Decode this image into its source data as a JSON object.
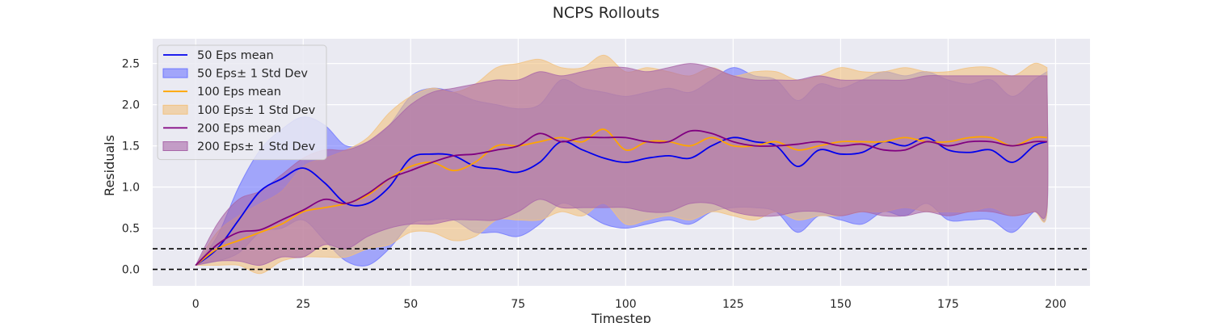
{
  "chart_data": {
    "type": "line",
    "title": "NCPS Rollouts",
    "xlabel": "Timestep",
    "ylabel": "Residuals",
    "xlim": [
      -10,
      208
    ],
    "ylim": [
      -0.2,
      2.8
    ],
    "xticks": [
      0,
      25,
      50,
      75,
      100,
      125,
      150,
      175,
      200
    ],
    "yticks": [
      0.0,
      0.5,
      1.0,
      1.5,
      2.0,
      2.5
    ],
    "xtick_labels": [
      "0",
      "25",
      "50",
      "75",
      "100",
      "125",
      "150",
      "175",
      "200"
    ],
    "ytick_labels": [
      "0.0",
      "0.5",
      "1.0",
      "1.5",
      "2.0",
      "2.5"
    ],
    "grid": true,
    "legend_position": "top-left",
    "reference_lines": [
      0.0,
      0.25
    ],
    "series": [
      {
        "name": "50 Eps mean",
        "band_name": "50 Eps± 1 Std Dev",
        "color": "#0000ee",
        "band_color": "#6f77ff",
        "x": [
          0,
          5,
          10,
          15,
          20,
          25,
          30,
          35,
          40,
          45,
          50,
          55,
          60,
          65,
          70,
          75,
          80,
          85,
          90,
          95,
          100,
          105,
          110,
          115,
          120,
          125,
          130,
          135,
          140,
          145,
          150,
          155,
          160,
          165,
          170,
          175,
          180,
          185,
          190,
          195,
          198
        ],
        "mean": [
          0.05,
          0.25,
          0.6,
          0.95,
          1.1,
          1.23,
          1.05,
          0.8,
          0.8,
          1.0,
          1.35,
          1.4,
          1.38,
          1.25,
          1.22,
          1.18,
          1.3,
          1.55,
          1.45,
          1.35,
          1.3,
          1.35,
          1.38,
          1.35,
          1.5,
          1.6,
          1.55,
          1.5,
          1.25,
          1.45,
          1.4,
          1.42,
          1.55,
          1.5,
          1.6,
          1.45,
          1.42,
          1.45,
          1.3,
          1.5,
          1.55
        ],
        "upper": [
          0.05,
          0.4,
          1.0,
          1.45,
          1.7,
          1.85,
          1.75,
          1.5,
          1.55,
          1.75,
          2.1,
          2.2,
          2.15,
          2.05,
          2.0,
          1.95,
          2.0,
          2.3,
          2.2,
          2.15,
          2.1,
          2.15,
          2.2,
          2.15,
          2.3,
          2.45,
          2.35,
          2.3,
          2.05,
          2.25,
          2.2,
          2.3,
          2.4,
          2.35,
          2.4,
          2.3,
          2.25,
          2.3,
          2.1,
          2.3,
          2.4
        ],
        "lower": [
          0.05,
          0.1,
          0.2,
          0.45,
          0.5,
          0.6,
          0.35,
          0.1,
          0.05,
          0.25,
          0.55,
          0.6,
          0.6,
          0.45,
          0.45,
          0.4,
          0.55,
          0.8,
          0.7,
          0.55,
          0.5,
          0.55,
          0.6,
          0.55,
          0.7,
          0.75,
          0.75,
          0.7,
          0.45,
          0.65,
          0.6,
          0.55,
          0.7,
          0.65,
          0.8,
          0.6,
          0.6,
          0.6,
          0.45,
          0.7,
          0.7
        ]
      },
      {
        "name": "100 Eps mean",
        "band_name": "100 Eps± 1 Std Dev",
        "color": "#ffa500",
        "band_color": "#f2c27f",
        "x": [
          0,
          5,
          10,
          15,
          20,
          25,
          30,
          35,
          40,
          45,
          50,
          55,
          60,
          65,
          70,
          75,
          80,
          85,
          90,
          95,
          100,
          105,
          110,
          115,
          120,
          125,
          130,
          135,
          140,
          145,
          150,
          155,
          160,
          165,
          170,
          175,
          180,
          185,
          190,
          195,
          198
        ],
        "mean": [
          0.05,
          0.25,
          0.35,
          0.45,
          0.55,
          0.7,
          0.75,
          0.8,
          0.9,
          1.1,
          1.25,
          1.3,
          1.2,
          1.3,
          1.5,
          1.5,
          1.55,
          1.6,
          1.55,
          1.7,
          1.45,
          1.55,
          1.55,
          1.5,
          1.6,
          1.5,
          1.5,
          1.55,
          1.45,
          1.5,
          1.55,
          1.55,
          1.55,
          1.6,
          1.55,
          1.55,
          1.6,
          1.6,
          1.5,
          1.6,
          1.6
        ],
        "upper": [
          0.05,
          0.45,
          0.65,
          0.8,
          0.95,
          1.25,
          1.35,
          1.45,
          1.6,
          1.9,
          2.1,
          2.2,
          2.15,
          2.25,
          2.45,
          2.5,
          2.55,
          2.45,
          2.45,
          2.6,
          2.4,
          2.45,
          2.4,
          2.35,
          2.45,
          2.35,
          2.4,
          2.4,
          2.3,
          2.35,
          2.45,
          2.4,
          2.4,
          2.45,
          2.4,
          2.4,
          2.45,
          2.45,
          2.35,
          2.5,
          2.45
        ],
        "lower": [
          0.05,
          0.05,
          0.05,
          -0.05,
          0.1,
          0.15,
          0.15,
          0.15,
          0.25,
          0.3,
          0.45,
          0.45,
          0.35,
          0.4,
          0.6,
          0.6,
          0.6,
          0.7,
          0.65,
          0.8,
          0.55,
          0.6,
          0.65,
          0.6,
          0.7,
          0.65,
          0.6,
          0.7,
          0.6,
          0.65,
          0.65,
          0.7,
          0.7,
          0.75,
          0.7,
          0.7,
          0.7,
          0.75,
          0.65,
          0.7,
          0.7
        ]
      },
      {
        "name": "200 Eps mean",
        "band_name": "200 Eps± 1 Std Dev",
        "color": "#800080",
        "band_color": "#a967a9",
        "x": [
          0,
          5,
          10,
          15,
          20,
          25,
          30,
          35,
          40,
          45,
          50,
          55,
          60,
          65,
          70,
          75,
          80,
          85,
          90,
          95,
          100,
          105,
          110,
          115,
          120,
          125,
          130,
          135,
          140,
          145,
          150,
          155,
          160,
          165,
          170,
          175,
          180,
          185,
          190,
          195,
          198
        ],
        "mean": [
          0.05,
          0.3,
          0.45,
          0.48,
          0.6,
          0.72,
          0.85,
          0.8,
          0.92,
          1.1,
          1.2,
          1.3,
          1.38,
          1.4,
          1.45,
          1.5,
          1.65,
          1.55,
          1.6,
          1.6,
          1.6,
          1.55,
          1.55,
          1.68,
          1.65,
          1.55,
          1.5,
          1.5,
          1.52,
          1.55,
          1.5,
          1.52,
          1.45,
          1.45,
          1.55,
          1.5,
          1.55,
          1.55,
          1.5,
          1.55,
          1.55
        ],
        "upper": [
          0.05,
          0.55,
          0.85,
          0.95,
          1.15,
          1.35,
          1.45,
          1.45,
          1.55,
          1.75,
          2.0,
          2.15,
          2.2,
          2.25,
          2.3,
          2.3,
          2.4,
          2.35,
          2.4,
          2.45,
          2.45,
          2.4,
          2.45,
          2.5,
          2.45,
          2.35,
          2.3,
          2.3,
          2.3,
          2.35,
          2.3,
          2.3,
          2.3,
          2.3,
          2.35,
          2.35,
          2.35,
          2.35,
          2.35,
          2.35,
          2.35
        ],
        "lower": [
          0.05,
          0.1,
          0.1,
          0.05,
          0.15,
          0.15,
          0.3,
          0.25,
          0.4,
          0.5,
          0.55,
          0.55,
          0.6,
          0.6,
          0.6,
          0.7,
          0.85,
          0.75,
          0.75,
          0.75,
          0.75,
          0.7,
          0.7,
          0.8,
          0.8,
          0.7,
          0.65,
          0.65,
          0.7,
          0.7,
          0.65,
          0.7,
          0.65,
          0.65,
          0.7,
          0.65,
          0.7,
          0.7,
          0.65,
          0.7,
          0.75
        ]
      }
    ]
  }
}
